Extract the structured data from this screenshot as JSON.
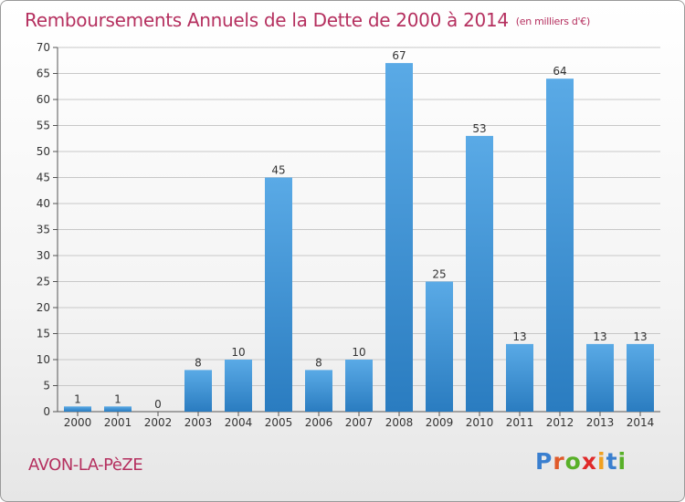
{
  "header": {
    "title": "Remboursements Annuels de la Dette de 2000 à 2014",
    "unit": "(en milliers d'€)"
  },
  "footer": {
    "commune": "AVON-LA-PèZE",
    "logo": "Proxiti"
  },
  "colors": {
    "title": "#b5305f",
    "bar_light": "#5aaae6",
    "bar_dark": "#2a7cc0",
    "grid": "#c8c8c8",
    "logo_letters": [
      "#3a7fcf",
      "#e05a2a",
      "#58b028",
      "#e02a2a",
      "#f0a020",
      "#3a7fcf",
      "#58b028"
    ]
  },
  "chart_data": {
    "type": "bar",
    "categories": [
      "2000",
      "2001",
      "2002",
      "2003",
      "2004",
      "2005",
      "2006",
      "2007",
      "2008",
      "2009",
      "2010",
      "2011",
      "2012",
      "2013",
      "2014"
    ],
    "values": [
      1,
      1,
      0,
      8,
      10,
      45,
      8,
      10,
      67,
      25,
      53,
      13,
      64,
      13,
      13
    ],
    "title": "Remboursements Annuels de la Dette de 2000 à 2014",
    "xlabel": "",
    "ylabel": "",
    "ylim": [
      0,
      70
    ],
    "yticks": [
      0,
      5,
      10,
      15,
      20,
      25,
      30,
      35,
      40,
      45,
      50,
      55,
      60,
      65,
      70
    ],
    "grid": true,
    "legend": "none"
  }
}
